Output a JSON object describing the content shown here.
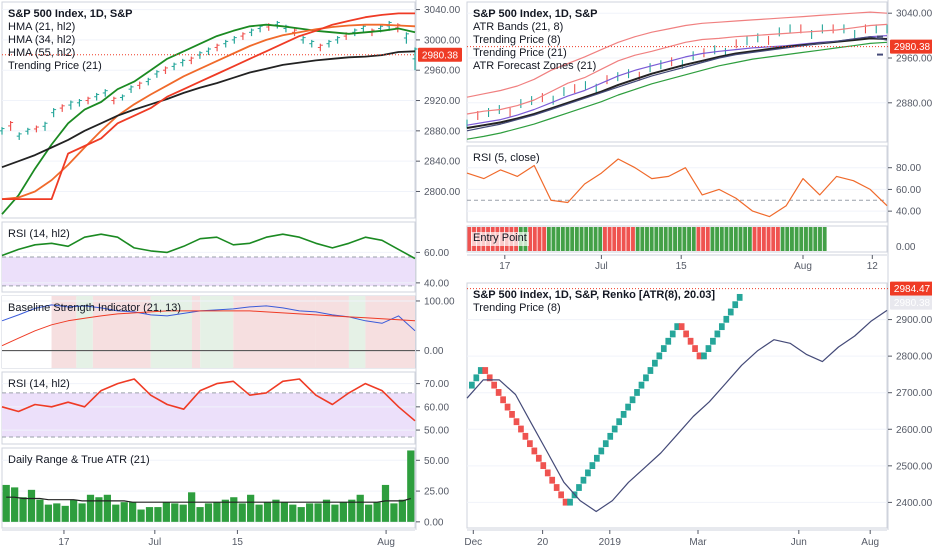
{
  "colors": {
    "bg": "#ffffff",
    "border": "#cfd3dc",
    "grid": "#f0f3fa",
    "text": "#131722",
    "tick": "#555a66",
    "up": "#26a69a",
    "down": "#ef5350",
    "bar": "#2e9e3e",
    "green": "#1b8a22",
    "red": "#ef3b25",
    "black": "#222222",
    "navy": "#444a78",
    "blue": "#3a5bd9",
    "purple": "#7b5bd6",
    "orange": "#f06a2b",
    "zone": "#ece0fa",
    "dashed": "#9aa0aa",
    "price_line": "#ef3b25"
  },
  "chart_data": [
    {
      "id": "main",
      "type": "line",
      "title": "S&P 500 Index, 1D, S&P",
      "legend": [
        "HMA (21, hl2)",
        "HMA (34, hl2)",
        "HMA (55, hl2)",
        "Trending Price (21)"
      ],
      "ylim": [
        2765,
        3050
      ],
      "yticks": [
        2800,
        2840,
        2880,
        2920,
        2960,
        3000,
        3040
      ],
      "ytick_labels": [
        "2800.00",
        "2840.00",
        "2880.00",
        "2920.00",
        "2960.00",
        "3000.00",
        "3040.00"
      ],
      "xticks": [
        "17",
        "Jul",
        "15",
        "Aug"
      ],
      "price_label": "2980.38",
      "x": [
        0,
        2,
        4,
        6,
        8,
        10,
        12,
        14,
        16,
        18,
        20,
        22,
        24,
        26,
        28,
        30,
        32,
        34,
        36,
        38,
        40,
        42,
        44,
        46,
        48,
        50
      ],
      "series": [
        {
          "values": [
            2770,
            2795,
            2830,
            2862,
            2890,
            2908,
            2918,
            2935,
            2945,
            2960,
            2975,
            2985,
            2995,
            3005,
            3012,
            3018,
            3020,
            3018,
            3015,
            3012,
            3010,
            3008,
            3010,
            3012,
            3015,
            3010
          ]
        },
        {
          "values": [
            2790,
            2792,
            2800,
            2815,
            2835,
            2858,
            2880,
            2900,
            2915,
            2928,
            2940,
            2952,
            2962,
            2972,
            2982,
            2992,
            3000,
            3006,
            3010,
            3014,
            3017,
            3019,
            3020,
            3020,
            3019,
            3018
          ]
        },
        {
          "values": [
            2832,
            2840,
            2848,
            2858,
            2868,
            2880,
            2890,
            2900,
            2908,
            2915,
            2922,
            2930,
            2937,
            2943,
            2950,
            2957,
            2962,
            2967,
            2970,
            2973,
            2975,
            2977,
            2978,
            2980,
            2984,
            2985
          ]
        },
        {
          "values": [
            2790,
            2790,
            2790,
            2790,
            2850,
            2860,
            2870,
            2890,
            2900,
            2910,
            2925,
            2935,
            2945,
            2955,
            2965,
            2975,
            2985,
            2995,
            3005,
            3012,
            3020,
            3025,
            3030,
            3033,
            3035,
            3035
          ]
        }
      ],
      "bars": [
        [
          2875,
          2885
        ],
        [
          2880,
          2893
        ],
        [
          2868,
          2878
        ],
        [
          2875,
          2884
        ],
        [
          2878,
          2887
        ],
        [
          2880,
          2892
        ],
        [
          2898,
          2910
        ],
        [
          2905,
          2915
        ],
        [
          2908,
          2920
        ],
        [
          2912,
          2922
        ],
        [
          2915,
          2925
        ],
        [
          2920,
          2930
        ],
        [
          2925,
          2935
        ],
        [
          2915,
          2925
        ],
        [
          2920,
          2928
        ],
        [
          2930,
          2940
        ],
        [
          2935,
          2945
        ],
        [
          2940,
          2950
        ],
        [
          2950,
          2960
        ],
        [
          2955,
          2965
        ],
        [
          2960,
          2970
        ],
        [
          2965,
          2975
        ],
        [
          2968,
          2978
        ],
        [
          2975,
          2985
        ],
        [
          2980,
          2990
        ],
        [
          2985,
          2995
        ],
        [
          2990,
          3000
        ],
        [
          2995,
          3005
        ],
        [
          3000,
          3010
        ],
        [
          3005,
          3015
        ],
        [
          3010,
          3020
        ],
        [
          3012,
          3022
        ],
        [
          3015,
          3025
        ],
        [
          3010,
          3020
        ],
        [
          3005,
          3015
        ],
        [
          2995,
          3005
        ],
        [
          2990,
          3000
        ],
        [
          2985,
          2995
        ],
        [
          2990,
          3000
        ],
        [
          2995,
          3005
        ],
        [
          3000,
          3010
        ],
        [
          3005,
          3015
        ],
        [
          3010,
          3020
        ],
        [
          3005,
          3015
        ],
        [
          3010,
          3020
        ],
        [
          3012,
          3025
        ],
        [
          3010,
          3022
        ],
        [
          2995,
          3010
        ],
        [
          2960,
          2990
        ]
      ]
    },
    {
      "id": "rsi1",
      "type": "line",
      "title": "RSI (14, hl2)",
      "ylim": [
        34,
        80
      ],
      "yticks": [
        40,
        60
      ],
      "ytick_labels": [
        "40.00",
        "60.00"
      ],
      "zone": [
        38,
        57
      ],
      "x": [
        0,
        2,
        4,
        6,
        8,
        10,
        12,
        14,
        16,
        18,
        20,
        22,
        24,
        26,
        28,
        30,
        32,
        34,
        36,
        38,
        40,
        42,
        44,
        46,
        48,
        50
      ],
      "values": [
        58,
        62,
        65,
        66,
        64,
        70,
        72,
        70,
        63,
        61,
        60,
        64,
        69,
        70,
        65,
        66,
        70,
        72,
        70,
        66,
        63,
        66,
        70,
        68,
        62,
        56
      ]
    },
    {
      "id": "baseline",
      "type": "line",
      "title": "Baseline Strength Indicator (21, 13)",
      "ylim": [
        -35,
        110
      ],
      "yticks": [
        0,
        100
      ],
      "ytick_labels": [
        "0.00",
        "100.00"
      ],
      "x": [
        0,
        2,
        4,
        6,
        8,
        10,
        12,
        14,
        16,
        18,
        20,
        22,
        24,
        26,
        28,
        30,
        32,
        34,
        36,
        38,
        40,
        42,
        44,
        46,
        48,
        50
      ],
      "series": [
        {
          "values": [
            60,
            72,
            85,
            92,
            88,
            90,
            86,
            80,
            78,
            72,
            70,
            75,
            80,
            82,
            84,
            88,
            90,
            86,
            80,
            78,
            72,
            68,
            60,
            55,
            70,
            40
          ]
        },
        {
          "values": [
            10,
            25,
            40,
            52,
            60,
            65,
            70,
            74,
            76,
            78,
            80,
            80,
            80,
            80,
            80,
            80,
            78,
            76,
            74,
            72,
            70,
            68,
            66,
            64,
            62,
            60
          ]
        }
      ]
    },
    {
      "id": "rsi2",
      "type": "line",
      "title": "RSI (14, hl2)",
      "ylim": [
        44,
        75
      ],
      "yticks": [
        50,
        60,
        70
      ],
      "ytick_labels": [
        "50.00",
        "60.00",
        "70.00"
      ],
      "zone": [
        47,
        66
      ],
      "x": [
        0,
        2,
        4,
        6,
        8,
        10,
        12,
        14,
        16,
        18,
        20,
        22,
        24,
        26,
        28,
        30,
        32,
        34,
        36,
        38,
        40,
        42,
        44,
        46,
        48,
        50
      ],
      "values": [
        60,
        58,
        61,
        60,
        62,
        60,
        67,
        70,
        72,
        65,
        61,
        59,
        67,
        70,
        71,
        65,
        66,
        71,
        72,
        65,
        61,
        66,
        70,
        67,
        60,
        54
      ]
    },
    {
      "id": "range",
      "type": "bar",
      "title": "Daily Range & True ATR (21)",
      "ylim": [
        -5,
        60
      ],
      "yticks": [
        0,
        25,
        50
      ],
      "ytick_labels": [
        "0.00",
        "25.00",
        "50.00"
      ],
      "values": [
        30,
        28,
        20,
        26,
        18,
        14,
        15,
        13,
        18,
        15,
        22,
        20,
        22,
        14,
        16,
        16,
        10,
        12,
        12,
        16,
        15,
        14,
        24,
        12,
        15,
        16,
        18,
        20,
        15,
        22,
        14,
        16,
        18,
        16,
        14,
        12,
        15,
        15,
        18,
        14,
        16,
        18,
        22,
        14,
        16,
        30,
        15,
        18,
        58
      ],
      "atr": [
        20,
        20,
        19,
        19,
        19,
        18,
        18,
        18,
        18,
        17,
        17,
        17,
        17,
        17,
        17,
        16,
        16,
        16,
        16,
        16,
        16,
        16,
        16,
        16,
        16,
        16,
        16,
        16,
        16,
        16,
        16,
        16,
        16,
        16,
        16,
        16,
        16,
        16,
        16,
        16,
        16,
        16,
        16,
        16,
        16,
        17,
        17,
        17,
        19
      ]
    },
    {
      "id": "atr_bands",
      "type": "line",
      "title": "S&P 500 Index, 1D, S&P",
      "legend": [
        "ATR Bands (21, 8)",
        "Trending Price (8)",
        "Trending Price (21)",
        "ATR Forecast Zones (21)"
      ],
      "ylim": [
        2810,
        3060
      ],
      "yticks": [
        2880,
        2960,
        3040
      ],
      "ytick_labels": [
        "2880.00",
        "2960.00",
        "3040.00"
      ],
      "price_label": "2980.38",
      "x": [
        0,
        2,
        4,
        6,
        8,
        10,
        12,
        14,
        16,
        18,
        20,
        22,
        24,
        26,
        28,
        30,
        32,
        34,
        36,
        38,
        40,
        42,
        44,
        46,
        48,
        50
      ],
      "series": [
        {
          "values": [
            2860,
            2865,
            2868,
            2875,
            2885,
            2900,
            2915,
            2925,
            2940,
            2955,
            2965,
            2972,
            2980,
            2988,
            2993,
            2995,
            2998,
            3000,
            3002,
            3004,
            3006,
            3008,
            3010,
            3014,
            3018,
            3020
          ]
        },
        {
          "values": [
            2890,
            2896,
            2902,
            2910,
            2922,
            2938,
            2950,
            2962,
            2975,
            2988,
            2998,
            3006,
            3012,
            3018,
            3022,
            3024,
            3026,
            3028,
            3030,
            3032,
            3034,
            3036,
            3038,
            3040,
            3042,
            3040
          ]
        },
        {
          "values": [
            2840,
            2845,
            2850,
            2858,
            2868,
            2880,
            2892,
            2902,
            2915,
            2928,
            2938,
            2946,
            2954,
            2962,
            2968,
            2972,
            2975,
            2978,
            2980,
            2982,
            2985,
            2988,
            2990,
            2994,
            2998,
            3000
          ]
        },
        {
          "values": [
            2835,
            2840,
            2845,
            2852,
            2860,
            2870,
            2880,
            2890,
            2900,
            2912,
            2922,
            2932,
            2940,
            2948,
            2955,
            2962,
            2968,
            2972,
            2976,
            2980,
            2983,
            2986,
            2989,
            2992,
            2995,
            2994
          ]
        },
        {
          "values": [
            2815,
            2820,
            2826,
            2834,
            2842,
            2852,
            2862,
            2872,
            2882,
            2894,
            2904,
            2914,
            2922,
            2930,
            2938,
            2946,
            2952,
            2958,
            2962,
            2966,
            2970,
            2974,
            2978,
            2982,
            2986,
            2988
          ]
        },
        {
          "values": [
            2830,
            2836,
            2842,
            2850,
            2858,
            2868,
            2878,
            2888,
            2898,
            2908,
            2918,
            2928,
            2936,
            2944,
            2952,
            2960,
            2966,
            2970,
            2974,
            2978,
            2982,
            2986,
            2990,
            2994,
            2998,
            2992
          ]
        }
      ]
    },
    {
      "id": "rsi5",
      "type": "line",
      "title": "RSI (5, close)",
      "ylim": [
        30,
        100
      ],
      "yticks": [
        40,
        60,
        80
      ],
      "ytick_labels": [
        "40.00",
        "60.00",
        "80.00"
      ],
      "x": [
        0,
        2,
        4,
        6,
        8,
        10,
        12,
        14,
        16,
        18,
        20,
        22,
        24,
        26,
        28,
        30,
        32,
        34,
        36,
        38,
        40,
        42,
        44,
        46,
        48,
        50
      ],
      "values": [
        75,
        70,
        78,
        72,
        82,
        50,
        48,
        65,
        75,
        88,
        80,
        70,
        72,
        80,
        55,
        60,
        52,
        40,
        35,
        45,
        70,
        55,
        72,
        68,
        60,
        45
      ]
    },
    {
      "id": "entry",
      "type": "bar",
      "title": "Entry Point",
      "xticks": [
        "17",
        "Jul",
        "15",
        "Aug",
        "12"
      ],
      "signals": [
        "r",
        "r",
        "r",
        "r",
        "r",
        "r",
        "r",
        "r",
        "r",
        "r",
        "r",
        "g",
        "g",
        "r",
        "r",
        "r",
        "r",
        "g",
        "g",
        "g",
        "g",
        "g",
        "g",
        "g",
        "g",
        "g",
        "g",
        "g",
        "g",
        "r",
        "r",
        "r",
        "r",
        "r",
        "r",
        "r",
        "g",
        "g",
        "g",
        "g",
        "g",
        "g",
        "g",
        "g",
        "g",
        "g",
        "g",
        "g",
        "g",
        "r",
        "r",
        "r",
        "g",
        "g",
        "g",
        "g",
        "g",
        "g",
        "g",
        "g",
        "g",
        "r",
        "r",
        "r",
        "r",
        "r",
        "r",
        "g",
        "g",
        "g",
        "g",
        "g",
        "g",
        "g",
        "g",
        "g",
        "g"
      ],
      "yticks": [
        0
      ],
      "ytick_labels": [
        "0.00"
      ]
    },
    {
      "id": "renko",
      "type": "line",
      "title": "S&P 500 Index, 1D, S&P, Renko [ATR(8), 20.03]",
      "legend": [
        "Trending Price (8)"
      ],
      "ylim": [
        2330,
        3000
      ],
      "yticks": [
        2400,
        2500,
        2600,
        2700,
        2800,
        2900
      ],
      "ytick_labels": [
        "2400.00",
        "2500.00",
        "2600.00",
        "2700.00",
        "2800.00",
        "2900.00"
      ],
      "xticks": [
        "Dec",
        "20",
        "2019",
        "Mar",
        "Jun",
        "Aug"
      ],
      "price_label": "2984.47",
      "price_label2": "2980.38",
      "line": [
        2710,
        2760,
        2760,
        2720,
        2640,
        2560,
        2480,
        2430,
        2400,
        2430,
        2480,
        2520,
        2560,
        2610,
        2660,
        2700,
        2750,
        2800,
        2840,
        2870,
        2860,
        2830,
        2810,
        2850,
        2880,
        2920,
        2950
      ]
    }
  ]
}
